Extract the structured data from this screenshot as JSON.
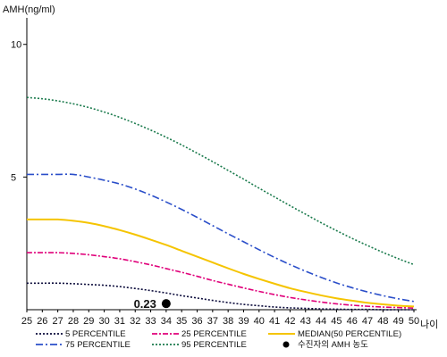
{
  "chart_data": {
    "type": "line",
    "ylabel": "AMH(ng/ml)",
    "xlabel": "나이",
    "xlim": [
      25,
      50
    ],
    "ylim": [
      0,
      11
    ],
    "yticks": [
      5,
      10
    ],
    "grid": false,
    "x": [
      25,
      26,
      27,
      28,
      29,
      30,
      31,
      32,
      33,
      34,
      35,
      36,
      37,
      38,
      39,
      40,
      41,
      42,
      43,
      44,
      45,
      46,
      47,
      48,
      49,
      50
    ],
    "series": [
      {
        "name": "5 PERCENTILE",
        "color": "#0b0b3b",
        "dash": "2,2",
        "values": [
          1.0,
          1.0,
          1.0,
          0.98,
          0.95,
          0.92,
          0.87,
          0.8,
          0.72,
          0.63,
          0.53,
          0.44,
          0.35,
          0.27,
          0.2,
          0.15,
          0.1,
          0.07,
          0.05,
          0.03,
          0.02,
          0.01,
          0.01,
          0.0,
          0.0,
          0.0
        ]
      },
      {
        "name": "25 PERCENTILE",
        "color": "#e0007a",
        "dash": "6,2,2,2",
        "values": [
          2.15,
          2.15,
          2.15,
          2.12,
          2.07,
          2.0,
          1.92,
          1.81,
          1.69,
          1.55,
          1.41,
          1.26,
          1.1,
          0.96,
          0.82,
          0.69,
          0.57,
          0.46,
          0.37,
          0.29,
          0.22,
          0.17,
          0.13,
          0.1,
          0.08,
          0.06
        ]
      },
      {
        "name": "MEDIAN(50 PERCENTILE)",
        "color": "#f5c400",
        "dash": "",
        "values": [
          3.4,
          3.4,
          3.4,
          3.35,
          3.27,
          3.15,
          3.0,
          2.83,
          2.64,
          2.44,
          2.22,
          2.0,
          1.78,
          1.56,
          1.35,
          1.16,
          0.98,
          0.81,
          0.67,
          0.54,
          0.43,
          0.34,
          0.26,
          0.2,
          0.15,
          0.12
        ]
      },
      {
        "name": "75 PERCENTILE",
        "color": "#2a4ec9",
        "dash": "8,3,2,3",
        "values": [
          5.1,
          5.1,
          5.1,
          5.1,
          5.0,
          4.88,
          4.74,
          4.55,
          4.32,
          4.06,
          3.78,
          3.48,
          3.17,
          2.86,
          2.56,
          2.26,
          1.97,
          1.7,
          1.45,
          1.22,
          1.01,
          0.83,
          0.67,
          0.53,
          0.41,
          0.31
        ]
      },
      {
        "name": "95 PERCENTILE",
        "color": "#1a7a4c",
        "dash": "2,2",
        "values": [
          8.0,
          7.95,
          7.87,
          7.76,
          7.62,
          7.45,
          7.25,
          7.02,
          6.77,
          6.5,
          6.21,
          5.9,
          5.58,
          5.25,
          4.92,
          4.58,
          4.25,
          3.92,
          3.6,
          3.28,
          2.98,
          2.69,
          2.42,
          2.16,
          1.92,
          1.7
        ]
      }
    ],
    "points": [
      {
        "name": "수진자의 AMH 농도",
        "x": 34,
        "y": 0.23,
        "label": "0.23",
        "color": "#000000"
      }
    ],
    "legend_position": "bottom",
    "legend": [
      {
        "label": "5 PERCENTILE",
        "series": "5 PERCENTILE"
      },
      {
        "label": "25 PERCENTILE",
        "series": "25 PERCENTILE"
      },
      {
        "label": "MEDIAN(50 PERCENTILE)",
        "series": "MEDIAN(50 PERCENTILE)"
      },
      {
        "label": "75 PERCENTILE",
        "series": "75 PERCENTILE"
      },
      {
        "label": "95 PERCENTILE",
        "series": "95 PERCENTILE"
      },
      {
        "label": "수진자의 AMH 농도",
        "marker": "dot"
      }
    ]
  }
}
